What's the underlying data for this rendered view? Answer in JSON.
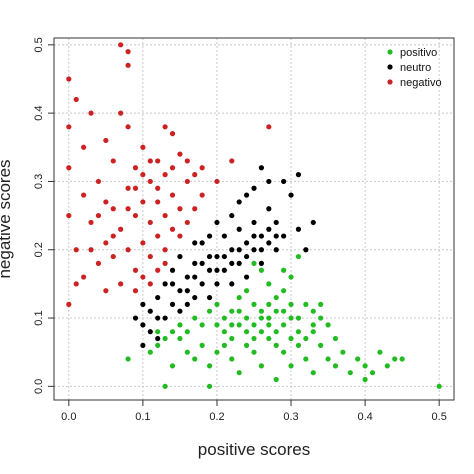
{
  "chart_data": {
    "type": "scatter",
    "title": "",
    "xlabel": "positive scores",
    "ylabel": "negative scores",
    "xlim": [
      -0.02,
      0.52
    ],
    "ylim": [
      -0.02,
      0.51
    ],
    "xticks": [
      0.0,
      0.1,
      0.2,
      0.3,
      0.4,
      0.5
    ],
    "yticks": [
      0.0,
      0.1,
      0.2,
      0.3,
      0.4,
      0.5
    ],
    "xtick_labels": [
      "0.0",
      "0.1",
      "0.2",
      "0.3",
      "0.4",
      "0.5"
    ],
    "ytick_labels": [
      "0.0",
      "0.1",
      "0.2",
      "0.3",
      "0.4",
      "0.5"
    ],
    "grid": true,
    "legend_position": "top-right",
    "series": [
      {
        "name": "positivo",
        "color": "#22bb22",
        "points": [
          [
            0.13,
            0.0
          ],
          [
            0.19,
            0.0
          ],
          [
            0.5,
            0.0
          ],
          [
            0.08,
            0.04
          ],
          [
            0.11,
            0.05
          ],
          [
            0.12,
            0.06
          ],
          [
            0.14,
            0.03
          ],
          [
            0.15,
            0.07
          ],
          [
            0.16,
            0.05
          ],
          [
            0.17,
            0.04
          ],
          [
            0.18,
            0.06
          ],
          [
            0.19,
            0.03
          ],
          [
            0.2,
            0.05
          ],
          [
            0.21,
            0.08
          ],
          [
            0.22,
            0.04
          ],
          [
            0.23,
            0.02
          ],
          [
            0.24,
            0.06
          ],
          [
            0.25,
            0.05
          ],
          [
            0.26,
            0.03
          ],
          [
            0.27,
            0.07
          ],
          [
            0.28,
            0.01
          ],
          [
            0.29,
            0.05
          ],
          [
            0.3,
            0.03
          ],
          [
            0.31,
            0.06
          ],
          [
            0.32,
            0.04
          ],
          [
            0.33,
            0.02
          ],
          [
            0.34,
            0.06
          ],
          [
            0.35,
            0.04
          ],
          [
            0.36,
            0.03
          ],
          [
            0.37,
            0.05
          ],
          [
            0.38,
            0.02
          ],
          [
            0.39,
            0.04
          ],
          [
            0.4,
            0.03
          ],
          [
            0.41,
            0.02
          ],
          [
            0.42,
            0.05
          ],
          [
            0.43,
            0.03
          ],
          [
            0.44,
            0.04
          ],
          [
            0.45,
            0.04
          ],
          [
            0.4,
            0.01
          ],
          [
            0.35,
            0.09
          ],
          [
            0.36,
            0.07
          ],
          [
            0.34,
            0.1
          ],
          [
            0.33,
            0.08
          ],
          [
            0.31,
            0.1
          ],
          [
            0.3,
            0.12
          ],
          [
            0.29,
            0.14
          ],
          [
            0.28,
            0.13
          ],
          [
            0.27,
            0.15
          ],
          [
            0.26,
            0.17
          ],
          [
            0.25,
            0.18
          ],
          [
            0.31,
            0.19
          ],
          [
            0.3,
            0.16
          ],
          [
            0.29,
            0.17
          ],
          [
            0.28,
            0.11
          ],
          [
            0.27,
            0.12
          ],
          [
            0.26,
            0.1
          ],
          [
            0.25,
            0.12
          ],
          [
            0.24,
            0.14
          ],
          [
            0.23,
            0.13
          ],
          [
            0.22,
            0.11
          ],
          [
            0.21,
            0.1
          ],
          [
            0.2,
            0.12
          ],
          [
            0.19,
            0.11
          ],
          [
            0.18,
            0.09
          ],
          [
            0.17,
            0.1
          ],
          [
            0.16,
            0.08
          ],
          [
            0.15,
            0.09
          ],
          [
            0.14,
            0.08
          ],
          [
            0.13,
            0.07
          ],
          [
            0.12,
            0.08
          ],
          [
            0.22,
            0.07
          ],
          [
            0.23,
            0.09
          ],
          [
            0.24,
            0.08
          ],
          [
            0.25,
            0.07
          ],
          [
            0.26,
            0.08
          ],
          [
            0.27,
            0.09
          ],
          [
            0.28,
            0.08
          ],
          [
            0.29,
            0.09
          ],
          [
            0.3,
            0.07
          ],
          [
            0.31,
            0.08
          ],
          [
            0.32,
            0.07
          ],
          [
            0.33,
            0.09
          ],
          [
            0.2,
            0.09
          ],
          [
            0.21,
            0.06
          ],
          [
            0.22,
            0.09
          ],
          [
            0.23,
            0.11
          ],
          [
            0.24,
            0.1
          ],
          [
            0.25,
            0.09
          ],
          [
            0.26,
            0.11
          ],
          [
            0.27,
            0.1
          ],
          [
            0.28,
            0.06
          ],
          [
            0.29,
            0.11
          ],
          [
            0.3,
            0.1
          ],
          [
            0.32,
            0.12
          ],
          [
            0.33,
            0.11
          ],
          [
            0.34,
            0.12
          ]
        ]
      },
      {
        "name": "neutro",
        "color": "#000000",
        "points": [
          [
            0.1,
            0.09
          ],
          [
            0.11,
            0.11
          ],
          [
            0.12,
            0.13
          ],
          [
            0.1,
            0.12
          ],
          [
            0.09,
            0.1
          ],
          [
            0.13,
            0.1
          ],
          [
            0.14,
            0.12
          ],
          [
            0.12,
            0.1
          ],
          [
            0.13,
            0.15
          ],
          [
            0.14,
            0.17
          ],
          [
            0.15,
            0.14
          ],
          [
            0.15,
            0.19
          ],
          [
            0.16,
            0.16
          ],
          [
            0.16,
            0.12
          ],
          [
            0.17,
            0.13
          ],
          [
            0.17,
            0.18
          ],
          [
            0.18,
            0.15
          ],
          [
            0.18,
            0.21
          ],
          [
            0.19,
            0.17
          ],
          [
            0.19,
            0.13
          ],
          [
            0.2,
            0.19
          ],
          [
            0.2,
            0.15
          ],
          [
            0.21,
            0.22
          ],
          [
            0.21,
            0.17
          ],
          [
            0.22,
            0.2
          ],
          [
            0.22,
            0.15
          ],
          [
            0.23,
            0.18
          ],
          [
            0.23,
            0.23
          ],
          [
            0.24,
            0.21
          ],
          [
            0.24,
            0.16
          ],
          [
            0.25,
            0.2
          ],
          [
            0.25,
            0.24
          ],
          [
            0.26,
            0.22
          ],
          [
            0.26,
            0.18
          ],
          [
            0.27,
            0.21
          ],
          [
            0.27,
            0.26
          ],
          [
            0.28,
            0.24
          ],
          [
            0.28,
            0.2
          ],
          [
            0.29,
            0.22
          ],
          [
            0.3,
            0.28
          ],
          [
            0.29,
            0.3
          ],
          [
            0.31,
            0.31
          ],
          [
            0.27,
            0.3
          ],
          [
            0.26,
            0.32
          ],
          [
            0.25,
            0.29
          ],
          [
            0.24,
            0.28
          ],
          [
            0.23,
            0.27
          ],
          [
            0.22,
            0.25
          ],
          [
            0.2,
            0.24
          ],
          [
            0.19,
            0.22
          ],
          [
            0.17,
            0.21
          ],
          [
            0.33,
            0.24
          ],
          [
            0.32,
            0.2
          ],
          [
            0.31,
            0.23
          ],
          [
            0.14,
            0.15
          ],
          [
            0.15,
            0.11
          ],
          [
            0.16,
            0.14
          ],
          [
            0.17,
            0.16
          ],
          [
            0.18,
            0.18
          ],
          [
            0.19,
            0.19
          ],
          [
            0.2,
            0.17
          ],
          [
            0.21,
            0.19
          ],
          [
            0.22,
            0.18
          ],
          [
            0.23,
            0.2
          ],
          [
            0.24,
            0.19
          ],
          [
            0.25,
            0.22
          ],
          [
            0.26,
            0.2
          ],
          [
            0.27,
            0.23
          ],
          [
            0.28,
            0.22
          ],
          [
            0.11,
            0.08
          ],
          [
            0.12,
            0.07
          ],
          [
            0.1,
            0.06
          ]
        ]
      },
      {
        "name": "negativo",
        "color": "#cc2222",
        "points": [
          [
            0.0,
            0.12
          ],
          [
            0.0,
            0.25
          ],
          [
            0.0,
            0.32
          ],
          [
            0.0,
            0.38
          ],
          [
            0.0,
            0.45
          ],
          [
            0.01,
            0.42
          ],
          [
            0.01,
            0.2
          ],
          [
            0.01,
            0.15
          ],
          [
            0.02,
            0.28
          ],
          [
            0.02,
            0.35
          ],
          [
            0.03,
            0.4
          ],
          [
            0.03,
            0.24
          ],
          [
            0.04,
            0.3
          ],
          [
            0.04,
            0.18
          ],
          [
            0.05,
            0.36
          ],
          [
            0.05,
            0.27
          ],
          [
            0.05,
            0.14
          ],
          [
            0.06,
            0.22
          ],
          [
            0.06,
            0.33
          ],
          [
            0.07,
            0.5
          ],
          [
            0.08,
            0.49
          ],
          [
            0.08,
            0.47
          ],
          [
            0.08,
            0.38
          ],
          [
            0.08,
            0.29
          ],
          [
            0.08,
            0.2
          ],
          [
            0.09,
            0.25
          ],
          [
            0.09,
            0.32
          ],
          [
            0.09,
            0.17
          ],
          [
            0.1,
            0.27
          ],
          [
            0.1,
            0.21
          ],
          [
            0.1,
            0.35
          ],
          [
            0.11,
            0.24
          ],
          [
            0.11,
            0.19
          ],
          [
            0.11,
            0.3
          ],
          [
            0.12,
            0.22
          ],
          [
            0.12,
            0.27
          ],
          [
            0.12,
            0.33
          ],
          [
            0.13,
            0.2
          ],
          [
            0.13,
            0.25
          ],
          [
            0.13,
            0.38
          ],
          [
            0.14,
            0.23
          ],
          [
            0.14,
            0.28
          ],
          [
            0.14,
            0.37
          ],
          [
            0.15,
            0.22
          ],
          [
            0.15,
            0.26
          ],
          [
            0.16,
            0.24
          ],
          [
            0.16,
            0.3
          ],
          [
            0.17,
            0.26
          ],
          [
            0.18,
            0.28
          ],
          [
            0.2,
            0.3
          ],
          [
            0.22,
            0.33
          ],
          [
            0.27,
            0.38
          ],
          [
            0.07,
            0.4
          ],
          [
            0.06,
            0.26
          ],
          [
            0.07,
            0.15
          ],
          [
            0.09,
            0.14
          ],
          [
            0.1,
            0.16
          ],
          [
            0.11,
            0.15
          ],
          [
            0.12,
            0.17
          ],
          [
            0.13,
            0.18
          ],
          [
            0.03,
            0.2
          ],
          [
            0.04,
            0.25
          ],
          [
            0.02,
            0.16
          ],
          [
            0.05,
            0.21
          ],
          [
            0.06,
            0.19
          ],
          [
            0.07,
            0.23
          ],
          [
            0.08,
            0.26
          ],
          [
            0.09,
            0.29
          ],
          [
            0.1,
            0.31
          ],
          [
            0.11,
            0.33
          ],
          [
            0.12,
            0.29
          ],
          [
            0.13,
            0.31
          ],
          [
            0.14,
            0.32
          ],
          [
            0.15,
            0.34
          ],
          [
            0.16,
            0.33
          ],
          [
            0.17,
            0.31
          ],
          [
            0.18,
            0.32
          ]
        ]
      }
    ]
  }
}
